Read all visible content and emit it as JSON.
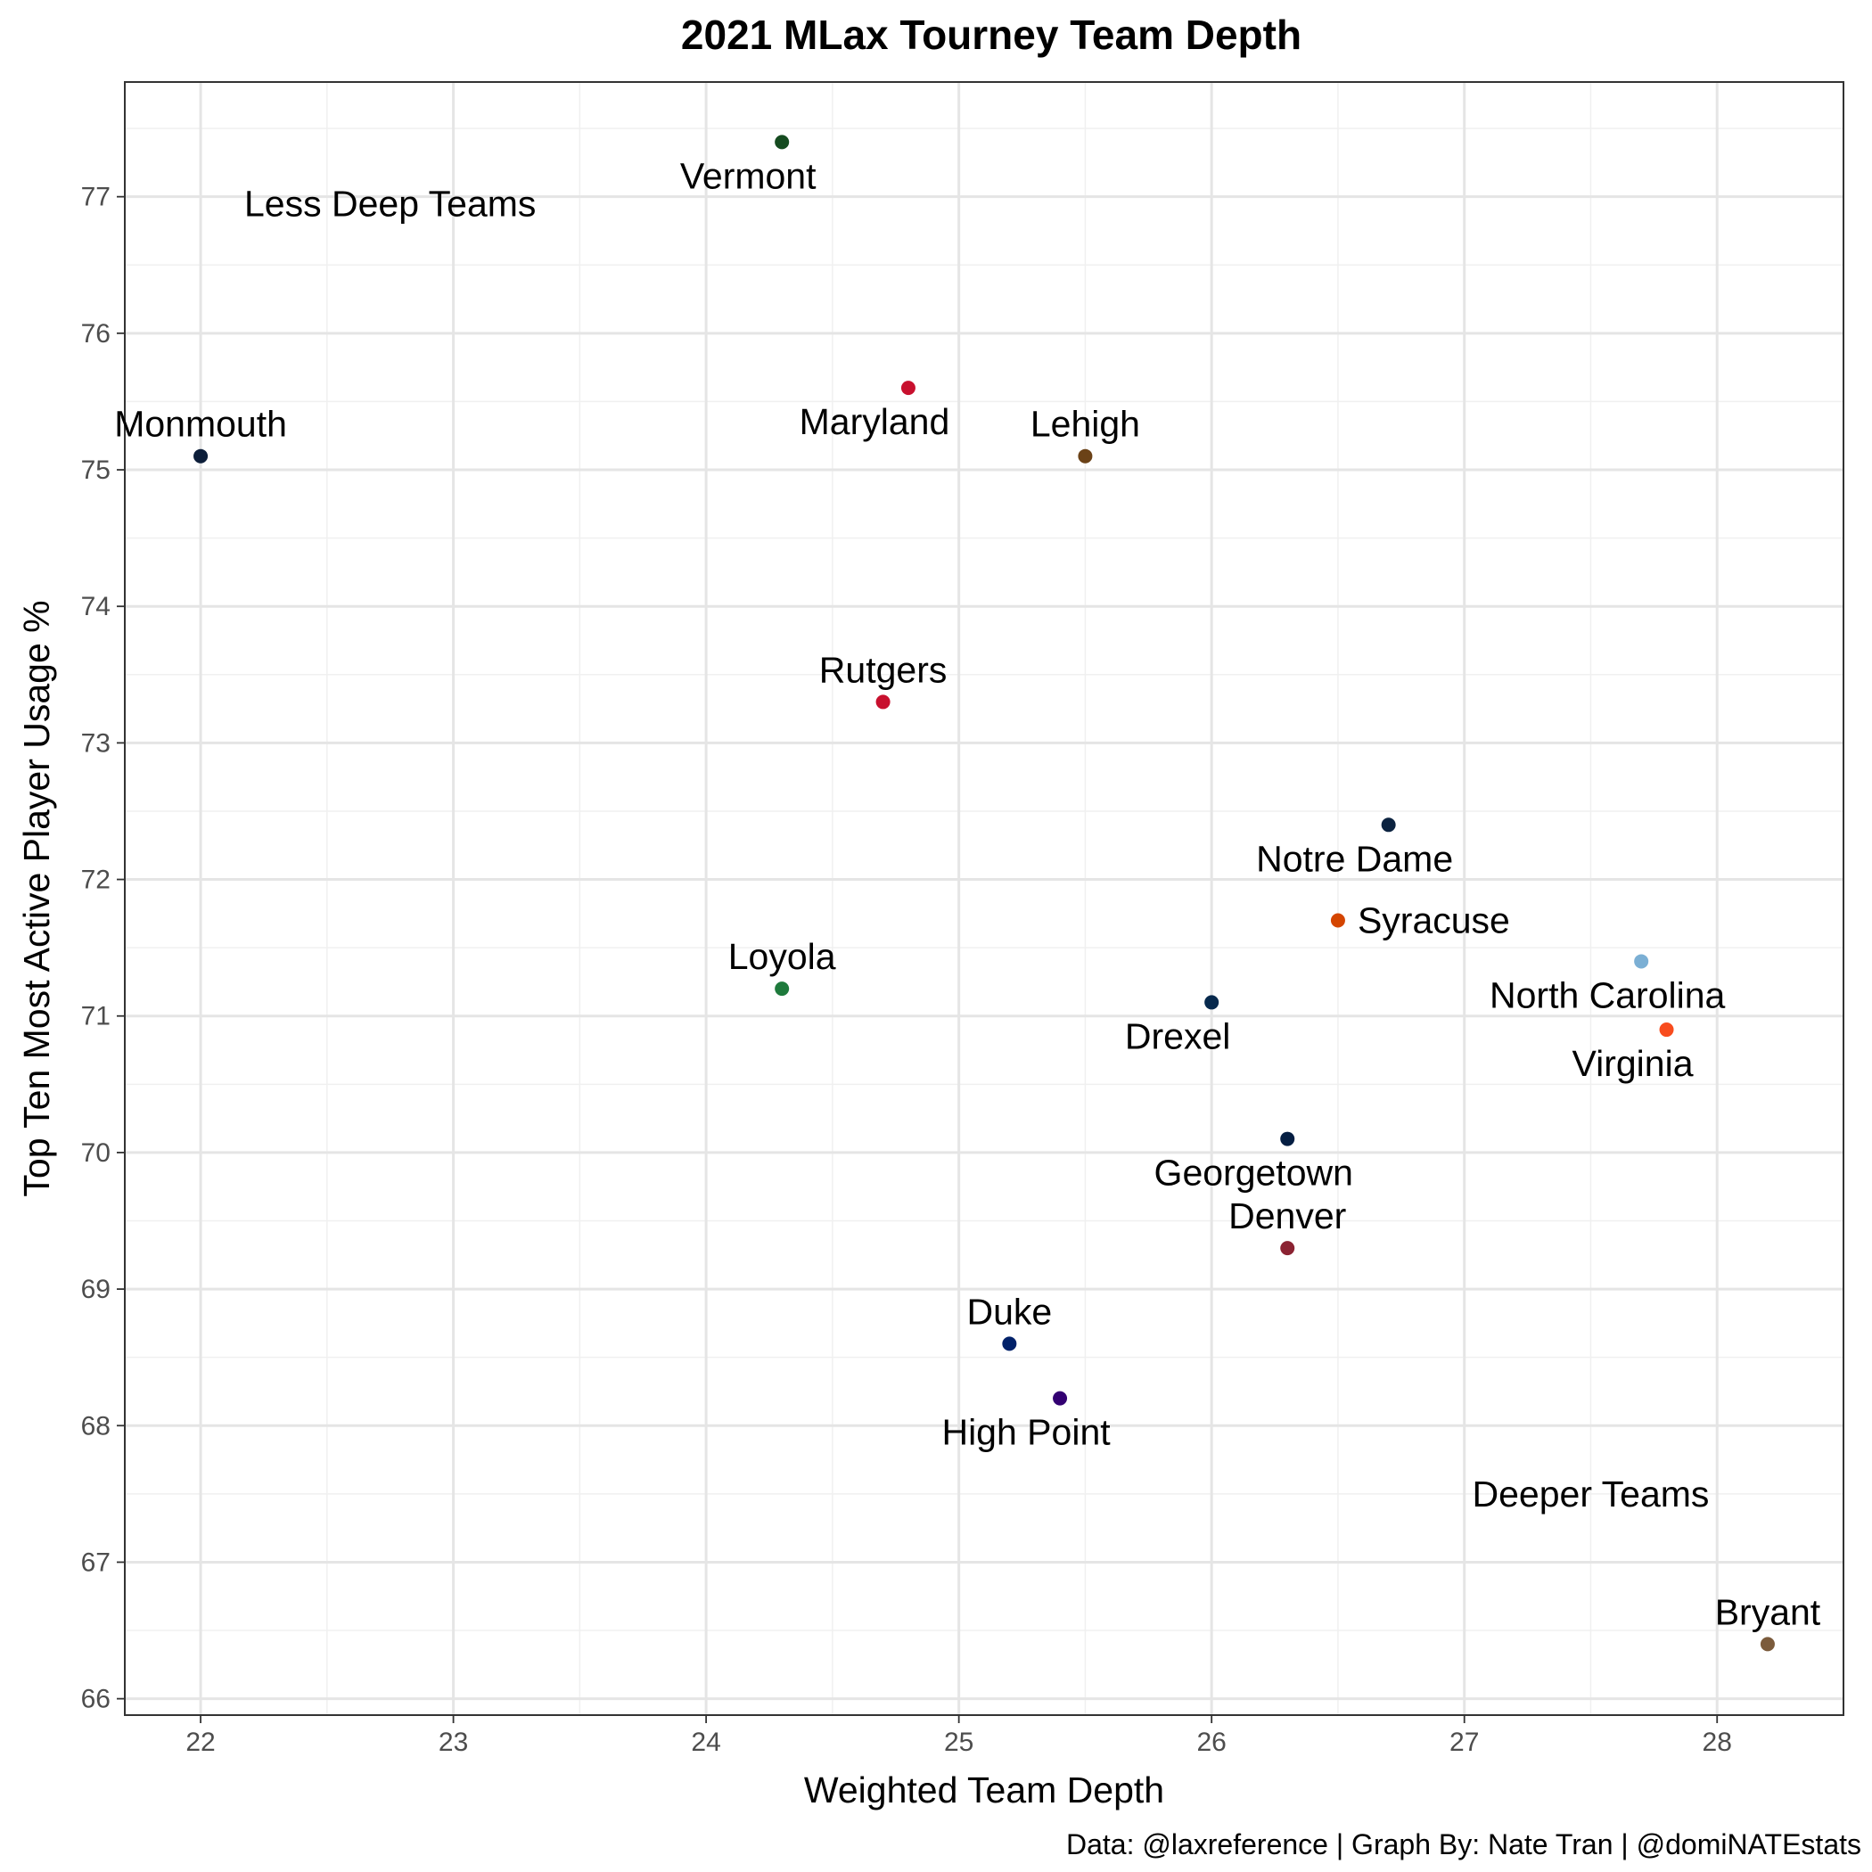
{
  "chart_data": {
    "type": "scatter",
    "title": "2021 MLax Tourney Team Depth",
    "xlabel": "Weighted Team Depth",
    "ylabel": "Top Ten Most Active Player Usage %",
    "caption": "Data: @laxreference | Graph By: Nate Tran | @domiNATEstats",
    "xlim": [
      21.7,
      28.5
    ],
    "ylim": [
      65.88,
      77.84
    ],
    "x_ticks": [
      22,
      23,
      24,
      25,
      26,
      27,
      28
    ],
    "y_ticks": [
      66,
      67,
      68,
      69,
      70,
      71,
      72,
      73,
      74,
      75,
      76,
      77
    ],
    "grid": true,
    "annotations": [
      {
        "text": "Less Deep Teams",
        "x": 22.75,
        "y": 76.95
      },
      {
        "text": "Deeper Teams",
        "x": 27.5,
        "y": 67.5
      }
    ],
    "points": [
      {
        "team": "Vermont",
        "x": 24.3,
        "y": 77.4,
        "color": "#154b20",
        "label_pos": "below"
      },
      {
        "team": "Maryland",
        "x": 24.8,
        "y": 75.6,
        "color": "#c8102e",
        "label_pos": "below"
      },
      {
        "team": "Monmouth",
        "x": 22.0,
        "y": 75.1,
        "color": "#0d1e3a",
        "label_pos": "above"
      },
      {
        "team": "Lehigh",
        "x": 25.5,
        "y": 75.1,
        "color": "#6b4217",
        "label_pos": "above"
      },
      {
        "team": "Rutgers",
        "x": 24.7,
        "y": 73.3,
        "color": "#c8102e",
        "label_pos": "above"
      },
      {
        "team": "Notre Dame",
        "x": 26.7,
        "y": 72.4,
        "color": "#0c2340",
        "label_pos": "below"
      },
      {
        "team": "Syracuse",
        "x": 26.5,
        "y": 71.7,
        "color": "#d44500",
        "label_pos": "right"
      },
      {
        "team": "North Carolina",
        "x": 27.7,
        "y": 71.4,
        "color": "#7bafd4",
        "label_pos": "below"
      },
      {
        "team": "Loyola",
        "x": 24.3,
        "y": 71.2,
        "color": "#1e7a3c",
        "label_pos": "above"
      },
      {
        "team": "Drexel",
        "x": 26.0,
        "y": 71.1,
        "color": "#07294d",
        "label_pos": "below"
      },
      {
        "team": "Virginia",
        "x": 27.8,
        "y": 70.9,
        "color": "#f84c1e",
        "label_pos": "below"
      },
      {
        "team": "Georgetown",
        "x": 26.3,
        "y": 70.1,
        "color": "#041e42",
        "label_pos": "below"
      },
      {
        "team": "Denver",
        "x": 26.3,
        "y": 69.3,
        "color": "#8b2332",
        "label_pos": "above"
      },
      {
        "team": "Duke",
        "x": 25.2,
        "y": 68.6,
        "color": "#012169",
        "label_pos": "above"
      },
      {
        "team": "High Point",
        "x": 25.4,
        "y": 68.2,
        "color": "#330072",
        "label_pos": "below"
      },
      {
        "team": "Bryant",
        "x": 28.2,
        "y": 66.4,
        "color": "#7b5b3c",
        "label_pos": "above"
      }
    ]
  }
}
